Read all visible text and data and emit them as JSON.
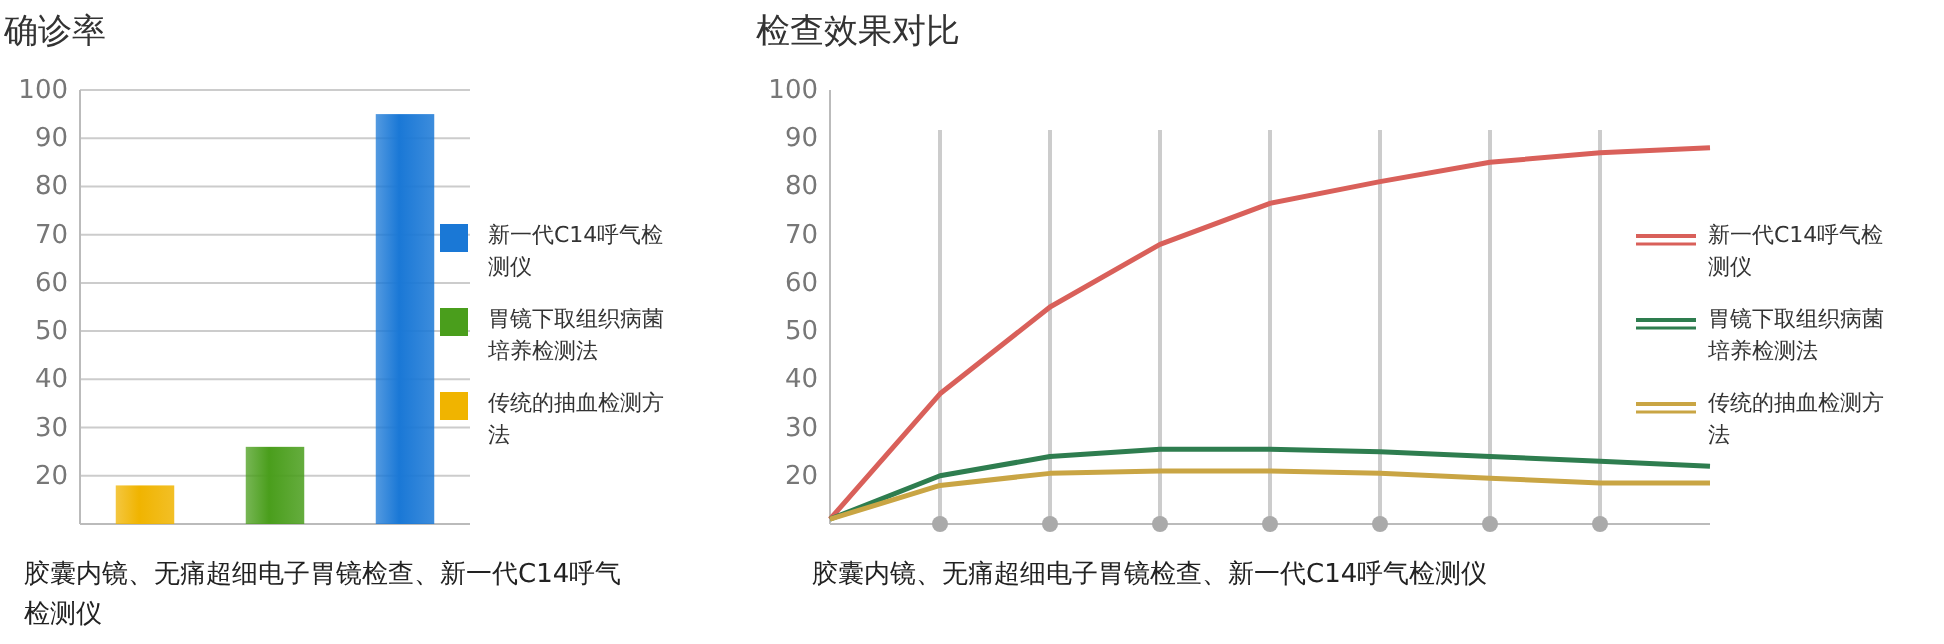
{
  "chart_data": [
    {
      "type": "bar",
      "title": "确诊率",
      "categories": [
        null,
        null,
        null
      ],
      "grid": "y",
      "legend": "right",
      "ylim": [
        10,
        100
      ],
      "yticks": [
        {
          "value": 10,
          "label": null
        },
        20,
        30,
        40,
        50,
        60,
        70,
        80,
        90,
        100
      ],
      "series": [
        {
          "name": "新一代C14呼气检测仪",
          "color": "#1a78d6",
          "values": [
            null,
            null,
            95
          ]
        },
        {
          "name": "胃镜下取组织病菌培养检测法",
          "color": "#4a9e1c",
          "values": [
            null,
            26,
            null
          ]
        },
        {
          "name": "传统的抽血检测方法",
          "color": "#f0b400",
          "values": [
            18,
            null,
            null
          ]
        }
      ],
      "annotations": [
        "胶囊内镜、无痛超细电子胃镜检查、新一代C14呼气检测仪"
      ]
    },
    {
      "type": "line",
      "title": "检查效果对比",
      "grid": "x",
      "legend": "right",
      "categories": [
        null,
        null,
        null,
        null,
        null,
        null,
        null,
        null,
        null
      ],
      "ylim": [
        10,
        100
      ],
      "yticks": [
        {
          "value": 10,
          "label": null
        },
        20,
        30,
        40,
        50,
        60,
        70,
        80,
        90,
        100
      ],
      "series": [
        {
          "name": "新一代C14呼气检测仪",
          "color": "#d9605a",
          "values": [
            11,
            37,
            55,
            68,
            76.5,
            81,
            85,
            87,
            88
          ]
        },
        {
          "name": "胃镜下取组织病菌培养检测法",
          "color": "#2e7d4f",
          "values": [
            11,
            20,
            24,
            25.5,
            25.5,
            25,
            24,
            23,
            22
          ]
        },
        {
          "name": "传统的抽血检测方法",
          "color": "#c9a544",
          "values": [
            11,
            18,
            20.5,
            21,
            21,
            20.5,
            19.5,
            18.5,
            18.5
          ]
        }
      ],
      "annotations": [
        "胶囊内镜、无痛超细电子胃镜检查、新一代C14呼气检测仪"
      ]
    }
  ]
}
